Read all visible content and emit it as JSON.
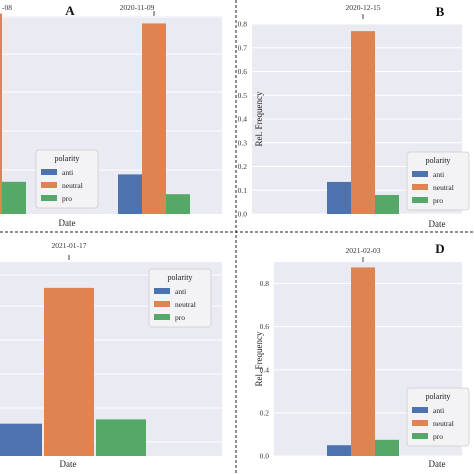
{
  "colors": {
    "anti": "#4c72b0",
    "neutral": "#dd8452",
    "pro": "#55a868"
  },
  "chart_data": [
    {
      "panel": "A",
      "type": "bar",
      "xlabel": "Date",
      "ylabel": "",
      "ylim": [
        0,
        0.8
      ],
      "yticks": [],
      "categories": [
        "-08",
        "2020-11-09"
      ],
      "series": [
        {
          "name": "anti",
          "values": [
            0.0,
            0.16
          ]
        },
        {
          "name": "neutral",
          "values": [
            0.81,
            0.77
          ]
        },
        {
          "name": "pro",
          "values": [
            0.13,
            0.08
          ]
        }
      ],
      "legend": {
        "title": "polarity",
        "placement": "lower-right"
      },
      "grid": true
    },
    {
      "panel": "B",
      "type": "bar",
      "xlabel": "Date",
      "ylabel": "Rel. Frequency",
      "ylim": [
        0,
        0.8
      ],
      "yticks": [
        "0.0",
        "0.1",
        "0.2",
        "0.3",
        "0.4",
        "0.5",
        "0.6",
        "0.7",
        "0.8"
      ],
      "categories": [
        "2020-12-15"
      ],
      "series": [
        {
          "name": "anti",
          "values": [
            0.135
          ]
        },
        {
          "name": "neutral",
          "values": [
            0.77
          ]
        },
        {
          "name": "pro",
          "values": [
            0.08
          ]
        }
      ],
      "legend": {
        "title": "polarity",
        "placement": "lower-right"
      },
      "grid": true
    },
    {
      "panel": "C",
      "type": "bar",
      "xlabel": "Date",
      "ylabel": "",
      "ylim": [
        0,
        0.9
      ],
      "yticks": [],
      "categories": [
        "2021-01-17"
      ],
      "series": [
        {
          "name": "anti",
          "values": [
            0.15
          ]
        },
        {
          "name": "neutral",
          "values": [
            0.78
          ]
        },
        {
          "name": "pro",
          "values": [
            0.17
          ]
        }
      ],
      "legend": {
        "title": "polarity",
        "placement": "upper-right"
      },
      "grid": true
    },
    {
      "panel": "D",
      "type": "bar",
      "xlabel": "Date",
      "ylabel": "Rel. Frequency",
      "ylim": [
        0,
        0.9
      ],
      "yticks": [
        "0.0",
        "0.2",
        "0.4",
        "0.6",
        "0.8"
      ],
      "categories": [
        "2021-02-03"
      ],
      "series": [
        {
          "name": "anti",
          "values": [
            0.05
          ]
        },
        {
          "name": "neutral",
          "values": [
            0.875
          ]
        },
        {
          "name": "pro",
          "values": [
            0.075
          ]
        }
      ],
      "legend": {
        "title": "polarity",
        "placement": "lower-right"
      },
      "grid": true
    }
  ]
}
